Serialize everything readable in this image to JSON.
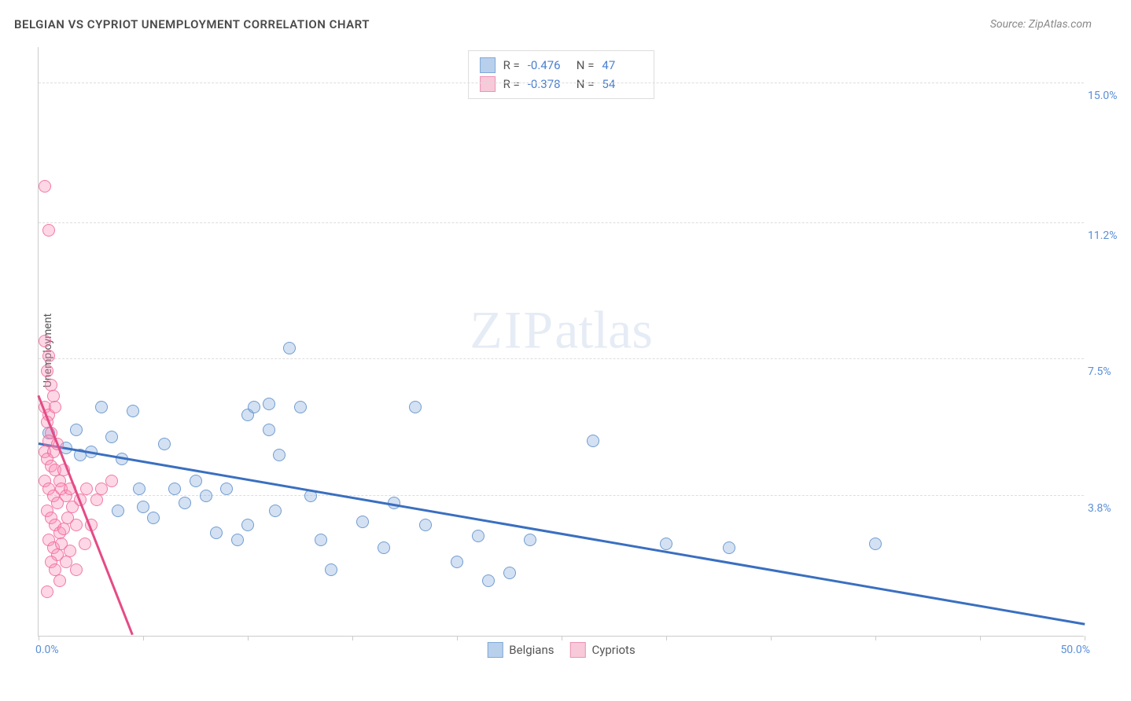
{
  "header": {
    "title": "BELGIAN VS CYPRIOT UNEMPLOYMENT CORRELATION CHART",
    "source": "Source: ZipAtlas.com"
  },
  "watermark": {
    "zip": "ZIP",
    "atlas": "atlas"
  },
  "chart": {
    "type": "scatter",
    "ylabel": "Unemployment",
    "xlim": [
      0,
      50
    ],
    "ylim": [
      0,
      16
    ],
    "xtick_positions": [
      0,
      5,
      10,
      15,
      20,
      25,
      30,
      35,
      40,
      45,
      50
    ],
    "xtick_labels": {
      "min": "0.0%",
      "max": "50.0%"
    },
    "ygrid": [
      {
        "val": 3.8,
        "label": "3.8%"
      },
      {
        "val": 7.5,
        "label": "7.5%"
      },
      {
        "val": 11.2,
        "label": "11.2%"
      },
      {
        "val": 15.0,
        "label": "15.0%"
      }
    ],
    "background_color": "#ffffff",
    "grid_color": "#dddddd",
    "axis_color": "#cccccc",
    "tick_label_color": "#5a8fd6",
    "marker_size": 16,
    "series": [
      {
        "name": "Belgians",
        "color_fill": "rgba(130,170,220,0.35)",
        "color_stroke": "rgba(90,140,200,0.8)",
        "swatch_fill": "#b9d0ec",
        "swatch_stroke": "#7fa9d9",
        "R": "-0.476",
        "N": "47",
        "trend": {
          "x1": 0,
          "y1": 5.2,
          "x2": 50,
          "y2": 0.3,
          "color": "#3a6fc0"
        },
        "points": [
          [
            0.5,
            5.5
          ],
          [
            1.3,
            5.1
          ],
          [
            1.8,
            5.6
          ],
          [
            2.0,
            4.9
          ],
          [
            2.5,
            5.0
          ],
          [
            3.0,
            6.2
          ],
          [
            3.5,
            5.4
          ],
          [
            4.5,
            6.1
          ],
          [
            3.8,
            3.4
          ],
          [
            4.0,
            4.8
          ],
          [
            4.8,
            4.0
          ],
          [
            5.0,
            3.5
          ],
          [
            5.5,
            3.2
          ],
          [
            6.0,
            5.2
          ],
          [
            6.5,
            4.0
          ],
          [
            7.0,
            3.6
          ],
          [
            7.5,
            4.2
          ],
          [
            8.0,
            3.8
          ],
          [
            8.5,
            2.8
          ],
          [
            9.0,
            4.0
          ],
          [
            9.5,
            2.6
          ],
          [
            10.0,
            3.0
          ],
          [
            10.0,
            6.0
          ],
          [
            10.3,
            6.2
          ],
          [
            11.0,
            5.6
          ],
          [
            11.0,
            6.3
          ],
          [
            11.3,
            3.4
          ],
          [
            11.5,
            4.9
          ],
          [
            12.5,
            6.2
          ],
          [
            12.0,
            7.8
          ],
          [
            13.0,
            3.8
          ],
          [
            13.5,
            2.6
          ],
          [
            14.0,
            1.8
          ],
          [
            15.5,
            3.1
          ],
          [
            16.5,
            2.4
          ],
          [
            17.0,
            3.6
          ],
          [
            18.0,
            6.2
          ],
          [
            18.5,
            3.0
          ],
          [
            20.0,
            2.0
          ],
          [
            21.0,
            2.7
          ],
          [
            21.5,
            1.5
          ],
          [
            22.5,
            1.7
          ],
          [
            23.5,
            2.6
          ],
          [
            26.5,
            5.3
          ],
          [
            30.0,
            2.5
          ],
          [
            33.0,
            2.4
          ],
          [
            40.0,
            2.5
          ]
        ]
      },
      {
        "name": "Cypriots",
        "color_fill": "rgba(250,140,180,0.35)",
        "color_stroke": "rgba(240,100,150,0.8)",
        "swatch_fill": "#f7c9d9",
        "swatch_stroke": "#ec94b6",
        "R": "-0.378",
        "N": "54",
        "trend": {
          "x1": 0,
          "y1": 6.5,
          "x2": 4.5,
          "y2": 0,
          "color": "#e54b86"
        },
        "points": [
          [
            0.3,
            12.2
          ],
          [
            0.5,
            11.0
          ],
          [
            0.3,
            8.0
          ],
          [
            0.5,
            7.6
          ],
          [
            0.4,
            7.2
          ],
          [
            0.6,
            6.8
          ],
          [
            0.3,
            6.2
          ],
          [
            0.5,
            6.0
          ],
          [
            0.7,
            6.5
          ],
          [
            0.8,
            6.2
          ],
          [
            0.4,
            5.8
          ],
          [
            0.6,
            5.5
          ],
          [
            0.5,
            5.3
          ],
          [
            0.3,
            5.0
          ],
          [
            0.7,
            5.0
          ],
          [
            0.9,
            5.2
          ],
          [
            0.4,
            4.8
          ],
          [
            0.6,
            4.6
          ],
          [
            0.8,
            4.5
          ],
          [
            0.3,
            4.2
          ],
          [
            0.5,
            4.0
          ],
          [
            1.0,
            4.2
          ],
          [
            1.2,
            4.5
          ],
          [
            0.7,
            3.8
          ],
          [
            0.9,
            3.6
          ],
          [
            1.1,
            4.0
          ],
          [
            0.4,
            3.4
          ],
          [
            0.6,
            3.2
          ],
          [
            1.3,
            3.8
          ],
          [
            1.5,
            4.0
          ],
          [
            0.8,
            3.0
          ],
          [
            1.0,
            2.8
          ],
          [
            0.5,
            2.6
          ],
          [
            1.2,
            2.9
          ],
          [
            1.4,
            3.2
          ],
          [
            1.6,
            3.5
          ],
          [
            0.7,
            2.4
          ],
          [
            0.9,
            2.2
          ],
          [
            1.1,
            2.5
          ],
          [
            1.8,
            3.0
          ],
          [
            2.0,
            3.7
          ],
          [
            2.3,
            4.0
          ],
          [
            2.5,
            3.0
          ],
          [
            0.6,
            2.0
          ],
          [
            0.8,
            1.8
          ],
          [
            1.0,
            1.5
          ],
          [
            1.3,
            2.0
          ],
          [
            1.5,
            2.3
          ],
          [
            3.0,
            4.0
          ],
          [
            1.8,
            1.8
          ],
          [
            0.4,
            1.2
          ],
          [
            2.2,
            2.5
          ],
          [
            2.8,
            3.7
          ],
          [
            3.5,
            4.2
          ]
        ]
      }
    ],
    "legend": {
      "stats_labels": {
        "R": "R =",
        "N": "N ="
      }
    }
  }
}
